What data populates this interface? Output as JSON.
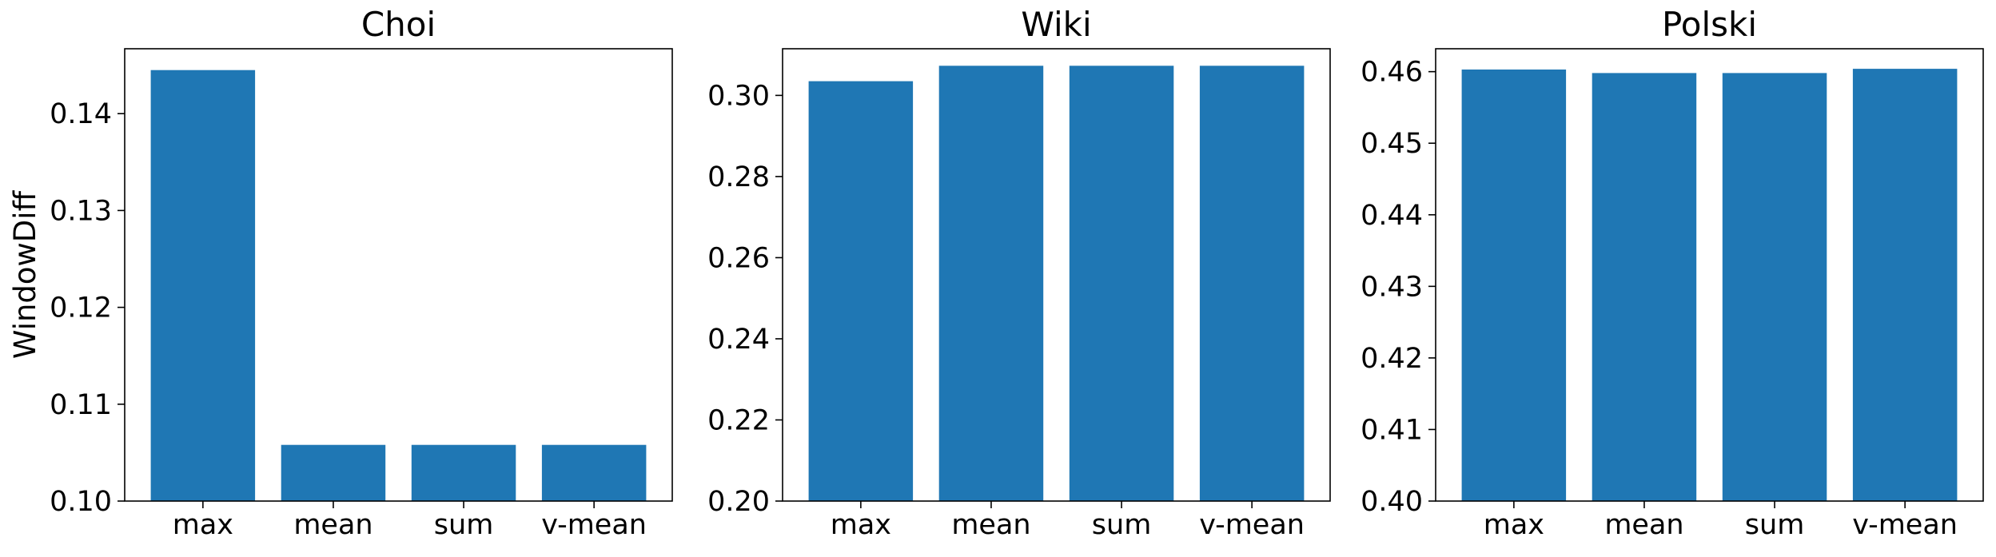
{
  "figure": {
    "ylabel": "WindowDiff",
    "bar_color": "#1f77b4"
  },
  "chart_data": [
    {
      "type": "bar",
      "title": "Choi",
      "categories": [
        "max",
        "mean",
        "sum",
        "v-mean"
      ],
      "values": [
        0.1445,
        0.1058,
        0.1058,
        0.1058
      ],
      "ylabel": "WindowDiff",
      "ylim": [
        0.1,
        0.1467
      ],
      "yticks": [
        "0.10",
        "0.11",
        "0.12",
        "0.13",
        "0.14"
      ],
      "ytick_values": [
        0.1,
        0.11,
        0.12,
        0.13,
        0.14
      ],
      "grid": false
    },
    {
      "type": "bar",
      "title": "Wiki",
      "categories": [
        "max",
        "mean",
        "sum",
        "v-mean"
      ],
      "values": [
        0.3035,
        0.3073,
        0.3073,
        0.3073
      ],
      "ylim": [
        0.2,
        0.3115
      ],
      "yticks": [
        "0.20",
        "0.22",
        "0.24",
        "0.26",
        "0.28",
        "0.30"
      ],
      "ytick_values": [
        0.2,
        0.22,
        0.24,
        0.26,
        0.28,
        0.3
      ],
      "grid": false
    },
    {
      "type": "bar",
      "title": "Polski",
      "categories": [
        "max",
        "mean",
        "sum",
        "v-mean"
      ],
      "values": [
        0.4603,
        0.4598,
        0.4598,
        0.4604
      ],
      "ylim": [
        0.4,
        0.4632
      ],
      "yticks": [
        "0.40",
        "0.41",
        "0.42",
        "0.43",
        "0.44",
        "0.45",
        "0.46"
      ],
      "ytick_values": [
        0.4,
        0.41,
        0.42,
        0.43,
        0.44,
        0.45,
        0.46
      ],
      "grid": false
    }
  ]
}
